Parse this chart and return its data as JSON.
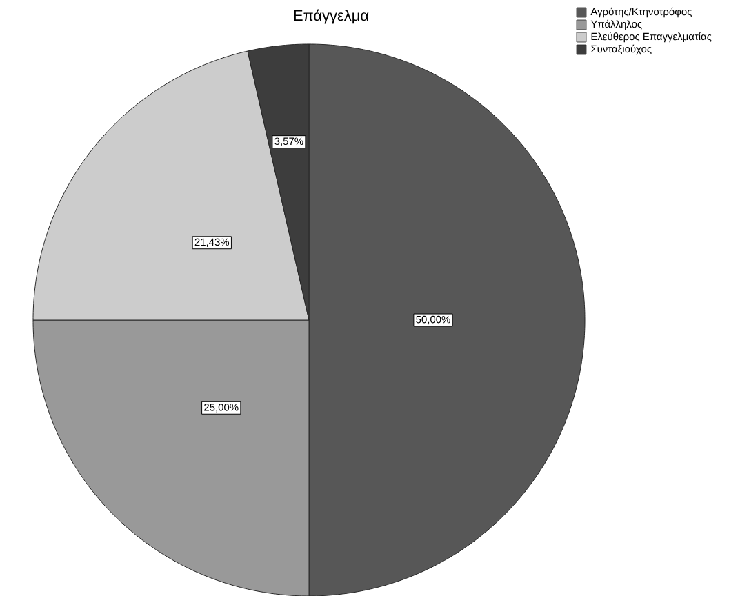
{
  "chart_data": {
    "type": "pie",
    "title": "Επάγγελμα",
    "categories": [
      "Αγρότης/Κτηνοτρόφος",
      "Υπάλληλος",
      "Ελεύθερος Επαγγελματίας",
      "Συνταξιούχος"
    ],
    "values": [
      50,
      25,
      21.43,
      3.57
    ],
    "colors": [
      "#575757",
      "#999999",
      "#cccccc",
      "#3d3d3d"
    ],
    "value_labels": [
      "50,00%",
      "25,00%",
      "21,43%",
      "3,57%"
    ],
    "legend": "top right"
  }
}
